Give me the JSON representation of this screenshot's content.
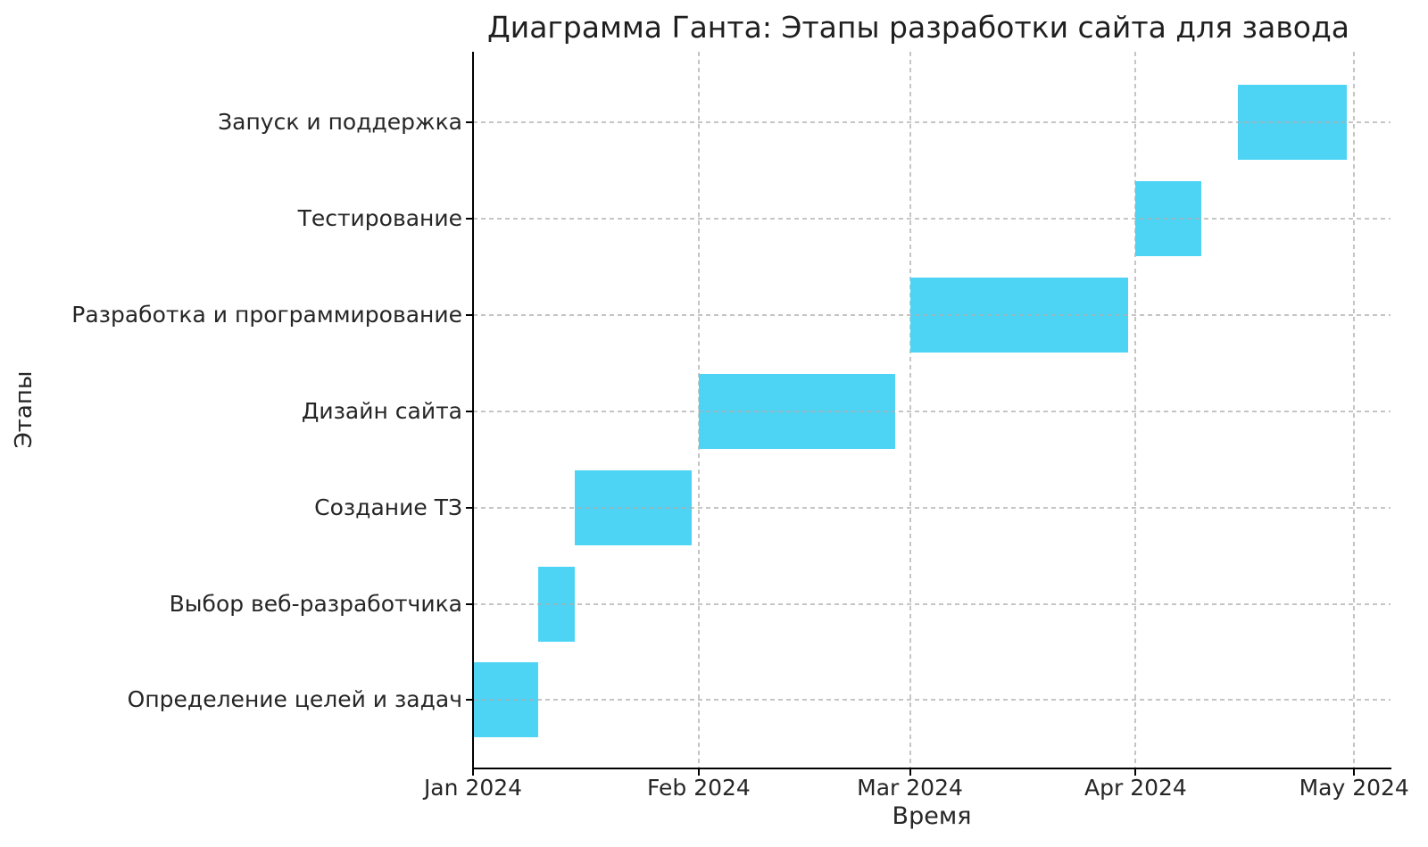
{
  "colors": {
    "bar": "#4DD4F5",
    "grid": "#acacac",
    "spine": "#000000",
    "text": "#262626"
  },
  "chart_data": {
    "type": "bar",
    "subtype": "gantt-horizontal",
    "title": "Диаграмма Ганта: Этапы разработки сайта для завода",
    "xlabel": "Время",
    "ylabel": "Этапы",
    "grid": "dashed, both axes, drawn above bars",
    "legend": "none",
    "xlim_days": [
      0,
      126
    ],
    "x_axis_origin_date": "2024-01-01",
    "x_ticks": [
      {
        "label": "Jan 2024",
        "day": 0
      },
      {
        "label": "Feb 2024",
        "day": 31
      },
      {
        "label": "Mar 2024",
        "day": 60
      },
      {
        "label": "Apr 2024",
        "day": 91
      },
      {
        "label": "May 2024",
        "day": 121
      }
    ],
    "tasks_top_to_bottom": [
      {
        "label": "Запуск и поддержка",
        "start": "2024-04-15",
        "end": "2024-04-30",
        "start_day": 105,
        "end_day": 120
      },
      {
        "label": "Тестирование",
        "start": "2024-04-01",
        "end": "2024-04-10",
        "start_day": 91,
        "end_day": 100
      },
      {
        "label": "Разработка и программирование",
        "start": "2024-03-01",
        "end": "2024-03-31",
        "start_day": 60,
        "end_day": 90
      },
      {
        "label": "Дизайн сайта",
        "start": "2024-02-01",
        "end": "2024-02-28",
        "start_day": 31,
        "end_day": 58
      },
      {
        "label": "Создание ТЗ",
        "start": "2024-01-15",
        "end": "2024-01-31",
        "start_day": 14,
        "end_day": 30
      },
      {
        "label": "Выбор веб-разработчика",
        "start": "2024-01-10",
        "end": "2024-01-15",
        "start_day": 9,
        "end_day": 14
      },
      {
        "label": "Определение целей и задач",
        "start": "2024-01-01",
        "end": "2024-01-10",
        "start_day": 0,
        "end_day": 9
      }
    ]
  }
}
